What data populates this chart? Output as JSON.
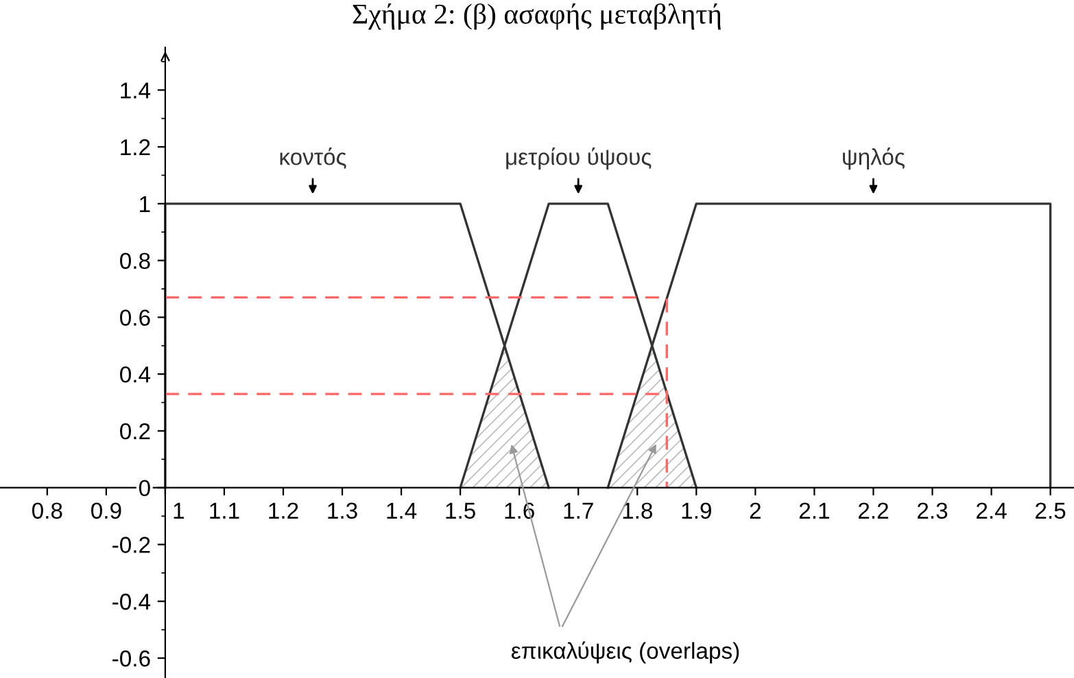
{
  "chart_data": {
    "type": "line",
    "title": "Σχήμα 2: (β) ασαφής μεταβλητή",
    "xlim": [
      0.72,
      2.54
    ],
    "ylim": [
      -0.67,
      1.55
    ],
    "xticks": [
      0.8,
      0.9,
      1,
      1.1,
      1.2,
      1.3,
      1.4,
      1.5,
      1.6,
      1.7,
      1.8,
      1.9,
      2,
      2.1,
      2.2,
      2.3,
      2.4,
      2.5
    ],
    "yticks": [
      -0.6,
      -0.4,
      -0.2,
      0,
      0.2,
      0.4,
      0.6,
      0.8,
      1,
      1.2,
      1.4
    ],
    "grid": false,
    "legend": false,
    "marker": "none",
    "series": [
      {
        "name": "κοντός",
        "color": "#333333",
        "line_style": "solid",
        "x": [
          1,
          1,
          1.5,
          1.65
        ],
        "values": [
          0,
          1,
          1,
          0
        ]
      },
      {
        "name": "μετρίου ύψους",
        "color": "#333333",
        "line_style": "solid",
        "x": [
          1.5,
          1.65,
          1.75,
          1.9
        ],
        "values": [
          0,
          1,
          1,
          0
        ]
      },
      {
        "name": "ψηλός",
        "color": "#333333",
        "line_style": "solid",
        "x": [
          1.75,
          1.9,
          2.5,
          2.5
        ],
        "values": [
          0,
          1,
          1,
          0
        ]
      },
      {
        "color": "#ff6666",
        "line_style": "dashed",
        "x": [
          1,
          1.85,
          1.85
        ],
        "values": [
          0.67,
          0.67,
          0
        ]
      },
      {
        "color": "#ff6666",
        "line_style": "dashed",
        "x": [
          1,
          1.85
        ],
        "values": [
          0.33,
          0.33
        ]
      }
    ],
    "annotations": [
      "επικαλύψεις (overlaps)"
    ]
  }
}
